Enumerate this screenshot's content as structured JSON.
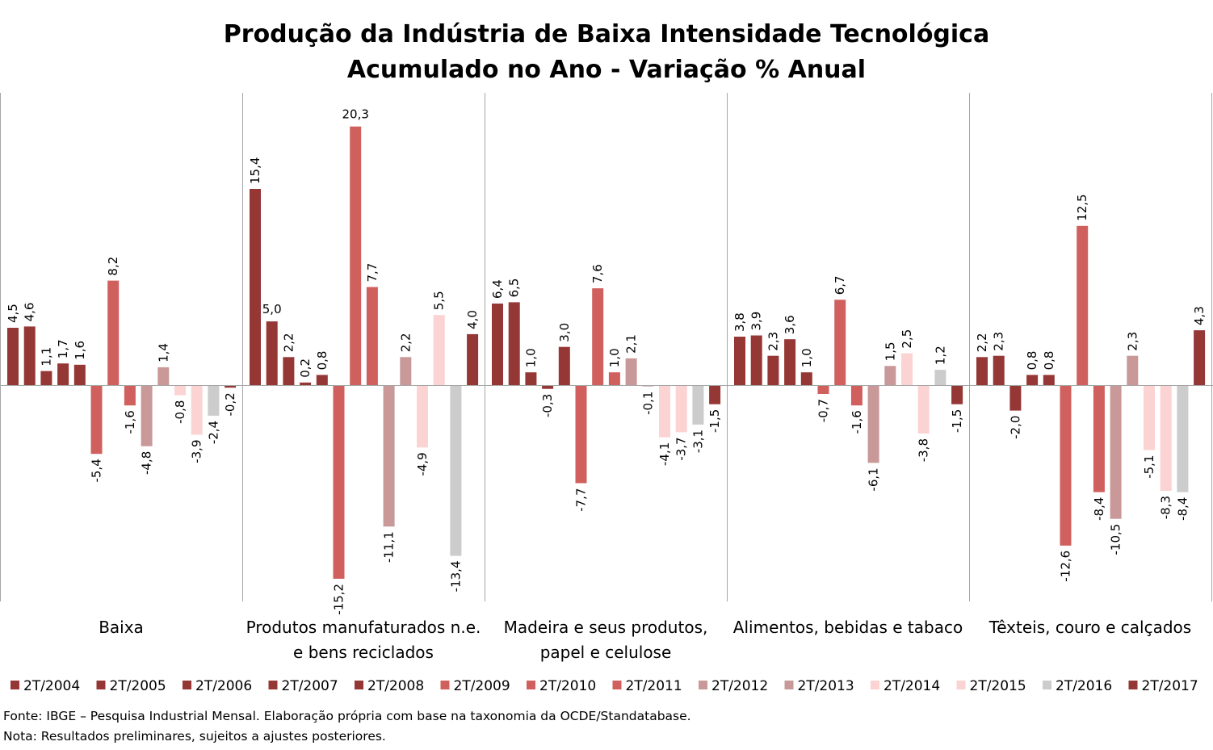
{
  "chart_data": {
    "type": "bar",
    "title": "Produção da Indústria de Baixa Intensidade Tecnológica",
    "subtitle": "Acumulado no Ano - Variação % Anual",
    "xlabel": "",
    "ylabel": "",
    "ylim": [
      -17.2,
      22.0
    ],
    "grid": false,
    "legend_position": "bottom",
    "categories": [
      [
        "Baixa"
      ],
      [
        "Produtos manufaturados n.e.",
        "e bens reciclados"
      ],
      [
        "Madeira e seus produtos,",
        "papel e celulose"
      ],
      [
        "Alimentos, bebidas e tabaco"
      ],
      [
        "Têxteis, couro e calçados"
      ]
    ],
    "series": [
      {
        "name": "2T/2004",
        "color": "#953735",
        "values": [
          4.5,
          15.4,
          6.4,
          3.8,
          2.2
        ],
        "labels": [
          "4,5",
          "15,4",
          "6,4",
          "3,8",
          "2,2"
        ]
      },
      {
        "name": "2T/2005",
        "color": "#953735",
        "values": [
          4.6,
          5.0,
          6.5,
          3.9,
          2.3
        ],
        "labels": [
          "4,6",
          "5,0",
          "6,5",
          "3,9",
          "2,3"
        ]
      },
      {
        "name": "2T/2006",
        "color": "#953735",
        "values": [
          1.1,
          2.2,
          1.0,
          2.3,
          -2.0
        ],
        "labels": [
          "1,1",
          "2,2",
          "1,0",
          "2,3",
          "-2,0"
        ]
      },
      {
        "name": "2T/2007",
        "color": "#953735",
        "values": [
          1.7,
          0.2,
          -0.3,
          3.6,
          0.8
        ],
        "labels": [
          "1,7",
          "0,2",
          "-0,3",
          "3,6",
          "0,8"
        ]
      },
      {
        "name": "2T/2008",
        "color": "#953735",
        "values": [
          1.6,
          0.8,
          3.0,
          1.0,
          0.8
        ],
        "labels": [
          "1,6",
          "0,8",
          "3,0",
          "1,0",
          "0,8"
        ]
      },
      {
        "name": "2T/2009",
        "color": "#d0605e",
        "values": [
          -5.4,
          -15.2,
          -7.7,
          -0.7,
          -12.6
        ],
        "labels": [
          "-5,4",
          "-15,2",
          "-7,7",
          "-0,7",
          "-12,6"
        ]
      },
      {
        "name": "2T/2010",
        "color": "#d0605e",
        "values": [
          8.2,
          20.3,
          7.6,
          6.7,
          12.5
        ],
        "labels": [
          "8,2",
          "20,3",
          "7,6",
          "6,7",
          "12,5"
        ]
      },
      {
        "name": "2T/2011",
        "color": "#d0605e",
        "values": [
          -1.6,
          7.7,
          1.0,
          -1.6,
          -8.4
        ],
        "labels": [
          "-1,6",
          "7,7",
          "1,0",
          "-1,6",
          "-8,4"
        ]
      },
      {
        "name": "2T/2012",
        "color": "#c99898",
        "values": [
          -4.8,
          -11.1,
          2.1,
          -6.1,
          -10.5
        ],
        "labels": [
          "-4,8",
          "-11,1",
          "2,1",
          "-6,1",
          "-10,5"
        ]
      },
      {
        "name": "2T/2013",
        "color": "#c99898",
        "values": [
          1.4,
          2.2,
          -0.1,
          1.5,
          2.3
        ],
        "labels": [
          "1,4",
          "2,2",
          "-0,1",
          "1,5",
          "2,3"
        ]
      },
      {
        "name": "2T/2014",
        "color": "#fcd3d3",
        "values": [
          -0.8,
          -4.9,
          -4.1,
          2.5,
          -5.1
        ],
        "labels": [
          "-0,8",
          "-4,9",
          "-4,1",
          "2,5",
          "-5,1"
        ]
      },
      {
        "name": "2T/2015",
        "color": "#fcd3d3",
        "values": [
          -3.9,
          5.5,
          -3.7,
          -3.8,
          -8.3
        ],
        "labels": [
          "-3,9",
          "5,5",
          "-3,7",
          "-3,8",
          "-8,3"
        ]
      },
      {
        "name": "2T/2016",
        "color": "#cccccc",
        "values": [
          -2.4,
          -13.4,
          -3.1,
          1.2,
          -8.4
        ],
        "labels": [
          "-2,4",
          "-13,4",
          "-3,1",
          "1,2",
          "-8,4"
        ]
      },
      {
        "name": "2T/2017",
        "color": "#953735",
        "values": [
          -0.2,
          4.0,
          -1.5,
          -1.5,
          4.3
        ],
        "labels": [
          "-0,2",
          "4,0",
          "-1,5",
          "-1,5",
          "4,3"
        ]
      }
    ],
    "horizontal_labels": [
      [
        1,
        1,
        5
      ],
      [
        1,
        6,
        1
      ]
    ]
  },
  "footnotes": {
    "source": "Fonte: IBGE – Pesquisa Industrial Mensal. Elaboração própria com base na taxonomia da OCDE/Standatabase.",
    "note": "Nota: Resultados preliminares, sujeitos a ajustes posteriores."
  }
}
